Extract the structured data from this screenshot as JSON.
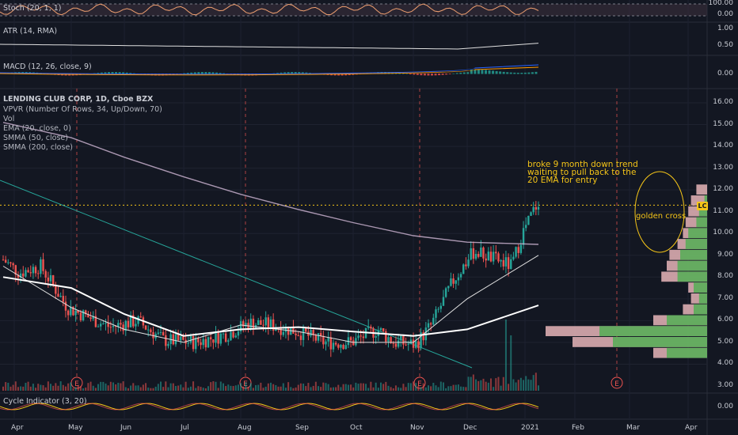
{
  "panes": {
    "stoch": {
      "label": "Stoch (20, 1, 1)",
      "ticks": [
        "100.00",
        "0.00"
      ]
    },
    "atr": {
      "label": "ATR (14, RMA)",
      "ticks": [
        "1.00",
        "0.50"
      ]
    },
    "macd": {
      "label": "MACD (12, 26, close, 9)",
      "ticks": [
        "0.00"
      ]
    },
    "main": {
      "title": "LENDING CLUB CORP, 1D, Cboe BZX",
      "indicators": [
        "VPVR (Number Of Rows, 34, Up/Down, 70)",
        "Vol",
        "EMA (20, close, 0)",
        "SMMA (50, close)",
        "SMMA (200, close)"
      ],
      "ticks": [
        "16.00",
        "15.00",
        "14.00",
        "13.00",
        "12.00",
        "11.00",
        "10.00",
        "9.00",
        "8.00",
        "7.00",
        "6.00",
        "5.00",
        "4.00",
        "3.00"
      ]
    },
    "cycle": {
      "label": "Cycle Indicator (3, 20)",
      "ticks": [
        "0.00"
      ]
    }
  },
  "symbol_badge": "LC",
  "annotation": [
    "broke 9 month down trend",
    "waiting to pull back to the",
    "20 EMA for entry"
  ],
  "golden_label": "golden cross",
  "earnings_marker": "E",
  "x_axis": [
    "Apr",
    "May",
    "Jun",
    "Jul",
    "Aug",
    "Sep",
    "Oct",
    "Nov",
    "Dec",
    "2021",
    "Feb",
    "Mar",
    "Apr"
  ],
  "colors": {
    "up": "#26a69a",
    "down": "#ef5350",
    "ema20": "#e0e0e0",
    "smma50": "#ffffff",
    "smma200": "#d1b8d6",
    "trendline": "#26a69a",
    "annotation": "#f5c518"
  },
  "chart_data": {
    "type": "line",
    "title": "LENDING CLUB CORP, 1D, Cboe BZX",
    "x": [
      "Apr",
      "May",
      "Jun",
      "Jul",
      "Aug",
      "Sep",
      "Oct",
      "Nov",
      "Dec",
      "2021"
    ],
    "series": [
      {
        "name": "EMA (20, close, 0)",
        "values": [
          8.5,
          6.6,
          5.6,
          5.0,
          5.8,
          5.5,
          5.0,
          5.0,
          7.0,
          9.0
        ]
      },
      {
        "name": "SMMA (50, close)",
        "values": [
          8.0,
          7.5,
          6.3,
          5.3,
          5.6,
          5.7,
          5.5,
          5.3,
          5.6,
          6.7
        ]
      },
      {
        "name": "SMMA (200, close)",
        "values": [
          15.1,
          14.4,
          13.5,
          12.6,
          11.8,
          11.1,
          10.5,
          9.9,
          9.6,
          9.5
        ]
      }
    ],
    "last_price": 11.3,
    "ylim": [
      3,
      16.5
    ]
  }
}
